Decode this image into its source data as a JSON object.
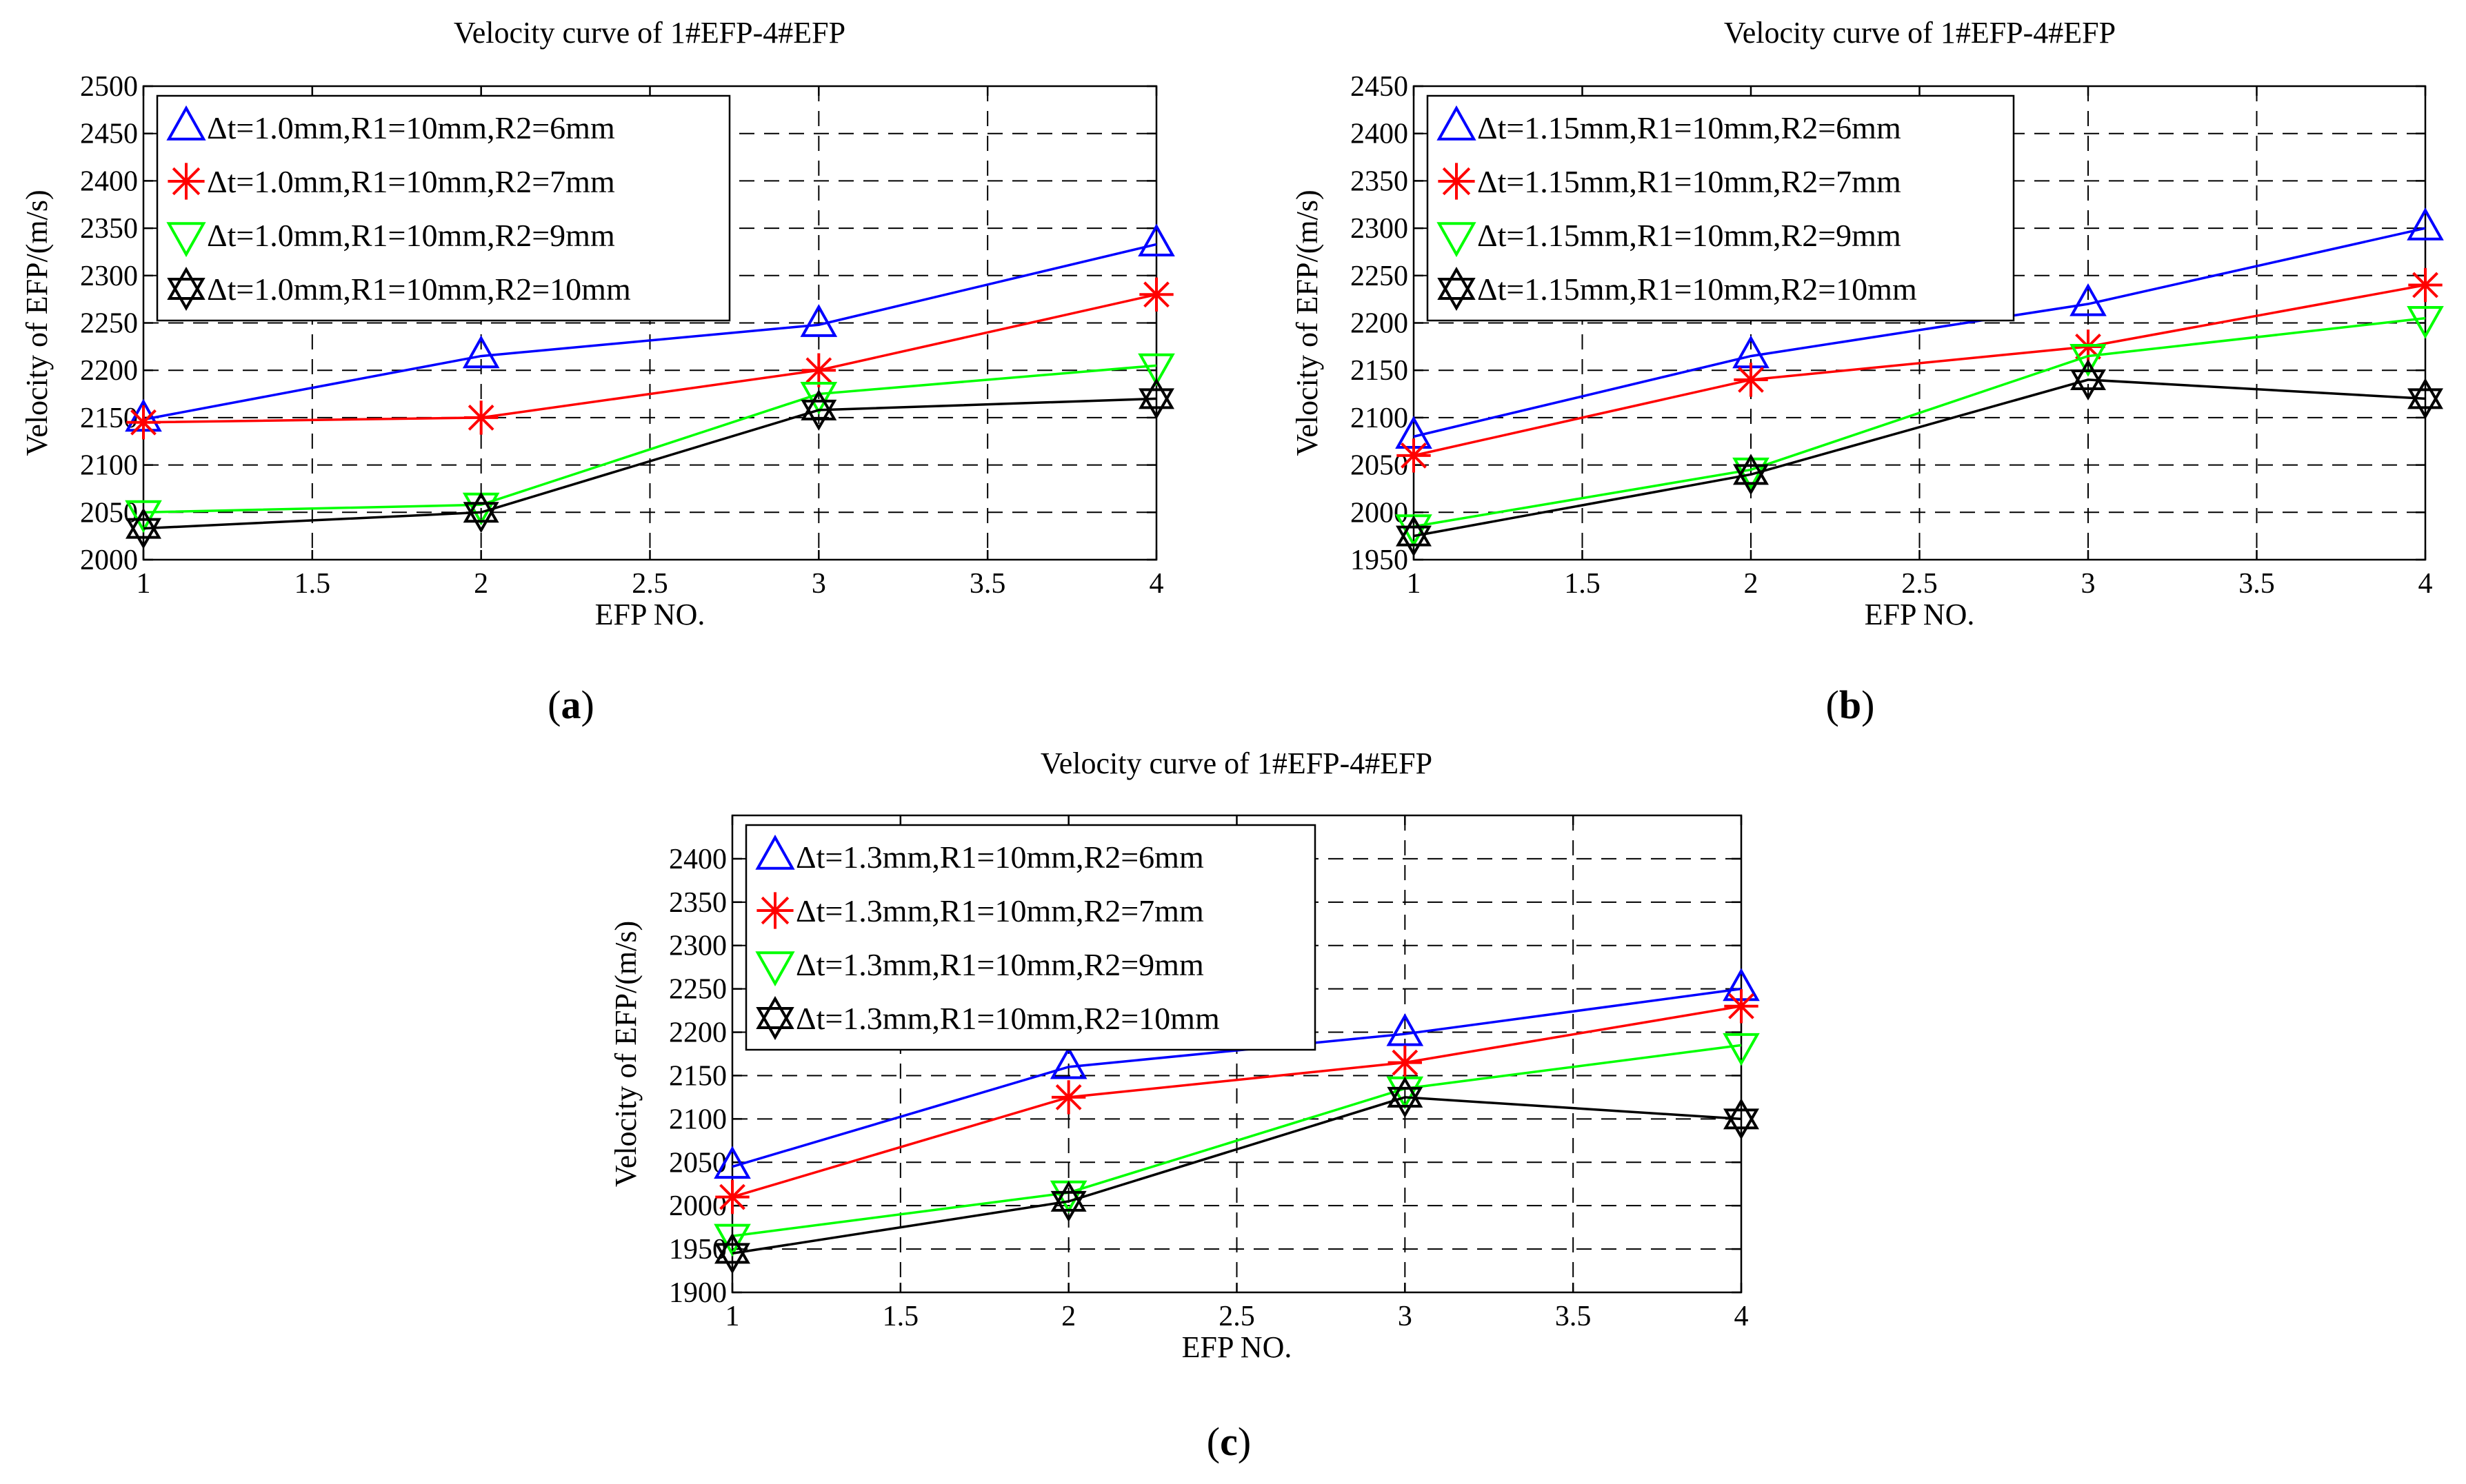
{
  "chart_data": [
    {
      "type": "line",
      "panel_label": "a",
      "title": "Velocity curve of 1#EFP-4#EFP",
      "xlabel": "EFP NO.",
      "ylabel": "Velocity of EFP/(m/s)",
      "xlim": [
        1,
        4
      ],
      "ylim": [
        2000,
        2500
      ],
      "x_ticks": [
        1,
        1.5,
        2,
        2.5,
        3,
        3.5,
        4
      ],
      "y_ticks": [
        2000,
        2050,
        2100,
        2150,
        2200,
        2250,
        2300,
        2350,
        2400,
        2450,
        2500
      ],
      "grid": true,
      "legend_position": "top-left",
      "x": [
        1,
        2,
        3,
        4
      ],
      "series": [
        {
          "name": "Δt=1.0mm,R1=10mm,R2=6mm",
          "color": "#0000ff",
          "marker": "triangle-up",
          "values": [
            2148,
            2215,
            2248,
            2333
          ]
        },
        {
          "name": "Δt=1.0mm,R1=10mm,R2=7mm",
          "color": "#ff0000",
          "marker": "asterisk",
          "values": [
            2145,
            2150,
            2200,
            2280
          ]
        },
        {
          "name": "Δt=1.0mm,R1=10mm,R2=9mm",
          "color": "#00ff00",
          "marker": "triangle-down",
          "values": [
            2050,
            2058,
            2175,
            2205
          ]
        },
        {
          "name": "Δt=1.0mm,R1=10mm,R2=10mm",
          "color": "#000000",
          "marker": "hexagram",
          "values": [
            2033,
            2050,
            2158,
            2170
          ]
        }
      ]
    },
    {
      "type": "line",
      "panel_label": "b",
      "title": "Velocity curve of 1#EFP-4#EFP",
      "xlabel": "EFP NO.",
      "ylabel": "Velocity of EFP/(m/s)",
      "xlim": [
        1,
        4
      ],
      "ylim": [
        1950,
        2450
      ],
      "x_ticks": [
        1,
        1.5,
        2,
        2.5,
        3,
        3.5,
        4
      ],
      "y_ticks": [
        1950,
        2000,
        2050,
        2100,
        2150,
        2200,
        2250,
        2300,
        2350,
        2400,
        2450
      ],
      "grid": true,
      "legend_position": "top-left",
      "x": [
        1,
        2,
        3,
        4
      ],
      "series": [
        {
          "name": "Δt=1.15mm,R1=10mm,R2=6mm",
          "color": "#0000ff",
          "marker": "triangle-up",
          "values": [
            2080,
            2165,
            2220,
            2300
          ]
        },
        {
          "name": "Δt=1.15mm,R1=10mm,R2=7mm",
          "color": "#ff0000",
          "marker": "asterisk",
          "values": [
            2060,
            2140,
            2175,
            2240
          ]
        },
        {
          "name": "Δt=1.15mm,R1=10mm,R2=9mm",
          "color": "#00ff00",
          "marker": "triangle-down",
          "values": [
            1985,
            2045,
            2165,
            2205
          ]
        },
        {
          "name": "Δt=1.15mm,R1=10mm,R2=10mm",
          "color": "#000000",
          "marker": "hexagram",
          "values": [
            1975,
            2040,
            2140,
            2120
          ]
        }
      ]
    },
    {
      "type": "line",
      "panel_label": "c",
      "title": "Velocity curve of 1#EFP-4#EFP",
      "xlabel": "EFP NO.",
      "ylabel": "Velocity of EFP/(m/s)",
      "xlim": [
        1,
        4
      ],
      "ylim": [
        1900,
        2450
      ],
      "x_ticks": [
        1,
        1.5,
        2,
        2.5,
        3,
        3.5,
        4
      ],
      "y_ticks": [
        1900,
        1950,
        2000,
        2050,
        2100,
        2150,
        2200,
        2250,
        2300,
        2350,
        2400
      ],
      "grid": true,
      "legend_position": "top-left",
      "x": [
        1,
        2,
        3,
        4
      ],
      "series": [
        {
          "name": "Δt=1.3mm,R1=10mm,R2=6mm",
          "color": "#0000ff",
          "marker": "triangle-up",
          "values": [
            2045,
            2160,
            2198,
            2250
          ]
        },
        {
          "name": "Δt=1.3mm,R1=10mm,R2=7mm",
          "color": "#ff0000",
          "marker": "asterisk",
          "values": [
            2010,
            2125,
            2165,
            2230
          ]
        },
        {
          "name": "Δt=1.3mm,R1=10mm,R2=9mm",
          "color": "#00ff00",
          "marker": "triangle-down",
          "values": [
            1965,
            2015,
            2135,
            2185
          ]
        },
        {
          "name": "Δt=1.3mm,R1=10mm,R2=10mm",
          "color": "#000000",
          "marker": "hexagram",
          "values": [
            1945,
            2005,
            2125,
            2100
          ]
        }
      ]
    }
  ]
}
